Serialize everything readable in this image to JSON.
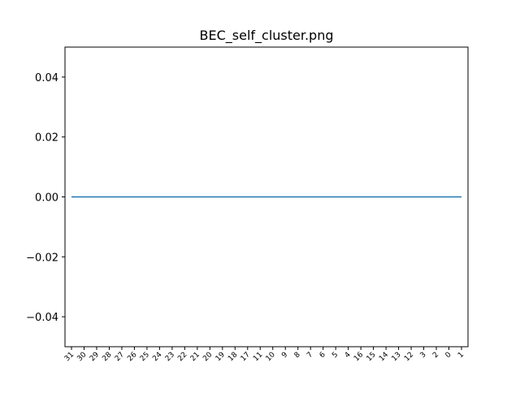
{
  "chart_data": {
    "type": "line",
    "title": "BEC_self_cluster.png",
    "xlabel": "",
    "ylabel": "",
    "categories": [
      "31",
      "30",
      "29",
      "28",
      "27",
      "26",
      "25",
      "24",
      "23",
      "22",
      "21",
      "20",
      "19",
      "18",
      "17",
      "11",
      "10",
      "9",
      "8",
      "7",
      "6",
      "5",
      "4",
      "16",
      "15",
      "14",
      "13",
      "12",
      "3",
      "2",
      "0",
      "1"
    ],
    "series": [
      {
        "values": [
          0,
          0,
          0,
          0,
          0,
          0,
          0,
          0,
          0,
          0,
          0,
          0,
          0,
          0,
          0,
          0,
          0,
          0,
          0,
          0,
          0,
          0,
          0,
          0,
          0,
          0,
          0,
          0,
          0,
          0,
          0,
          0
        ],
        "color": "#1f77b4"
      }
    ],
    "ylim": [
      -0.05,
      0.05
    ],
    "yticks": [
      -0.04,
      -0.02,
      0.0,
      0.02,
      0.04
    ],
    "ytick_labels": [
      "−0.04",
      "−0.02",
      "0.00",
      "0.02",
      "0.04"
    ],
    "grid": false,
    "legend": false
  }
}
